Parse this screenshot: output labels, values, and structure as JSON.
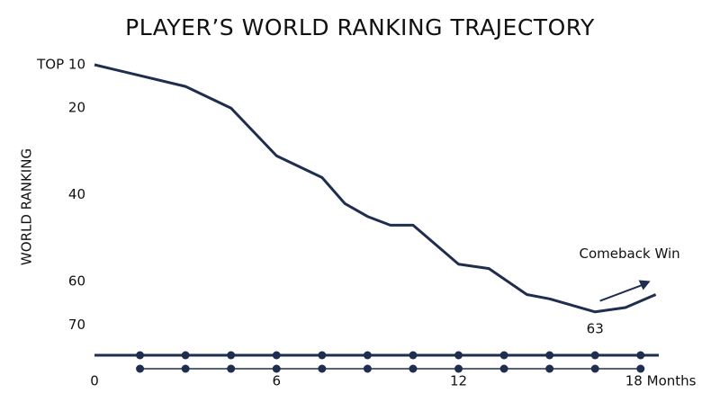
{
  "chart_data": {
    "type": "line",
    "title": "PLAYER’S WORLD RANKING TRAJECTORY",
    "y_label": "WORLD RANKING",
    "x": [
      0,
      3,
      4.5,
      6,
      7.5,
      8.25,
      9,
      9.75,
      10.5,
      12,
      13,
      14.25,
      15,
      16.5,
      17.5,
      18.5
    ],
    "series": [
      {
        "name": "World ranking",
        "color": "#1f2d4e",
        "values": [
          10,
          15,
          20,
          31,
          36,
          42,
          45,
          47,
          47,
          56,
          57,
          63,
          64,
          67,
          66,
          63
        ]
      }
    ],
    "ylim": [
      10,
      77
    ],
    "y_inverted": true,
    "yticks": [
      {
        "value": 10,
        "label": "TOP 10"
      },
      20,
      40,
      60,
      70
    ],
    "xlim": [
      0,
      18.6
    ],
    "xticks": [
      0,
      6,
      12,
      {
        "value": 18,
        "label": "18 Months"
      }
    ],
    "annotation_low": "63",
    "annotation_end": "Comeback Win"
  }
}
